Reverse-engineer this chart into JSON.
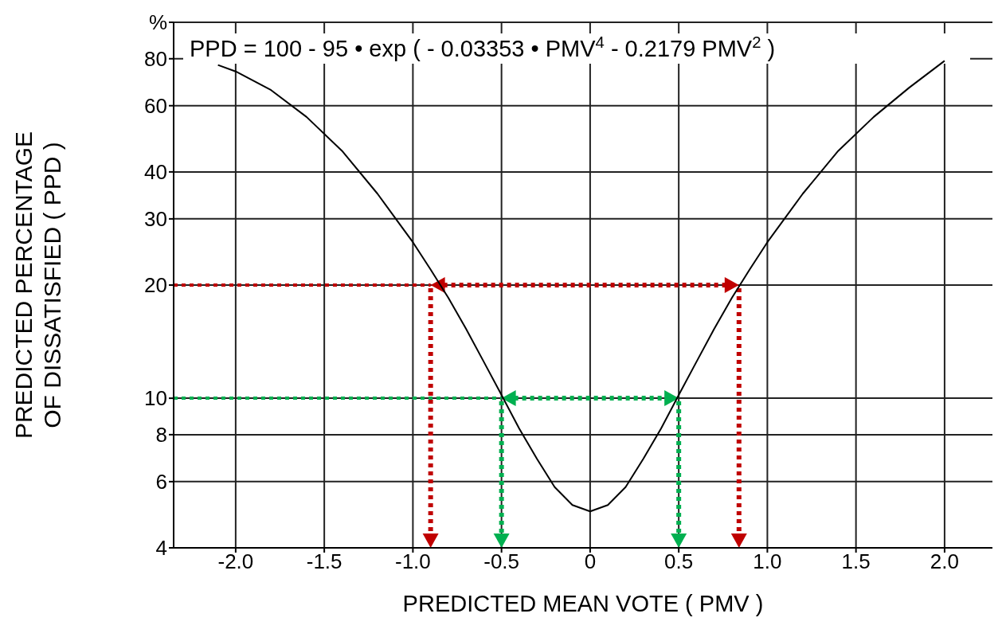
{
  "chart_data": {
    "type": "line",
    "xlabel": "PREDICTED  MEAN  VOTE  ( PMV )",
    "ylabel": "PREDICTED  PERCENTAGE\nOF  DISSATISFIED  ( PPD )",
    "annotations": [
      "PPD = 100 - 95 • exp ( - 0.03353 • PMV$^{4}$ - 0.2179 PMV$^{2}$ )"
    ],
    "log": "y",
    "grid": true,
    "marker": "none",
    "xlim": [
      -2.35,
      2.27
    ],
    "xticks": [
      {
        "value": -2,
        "label": "-2.0"
      },
      {
        "value": -1.5,
        "label": "-1.5"
      },
      {
        "value": -1,
        "label": "-1.0"
      },
      {
        "value": -0.5,
        "label": "-0.5"
      },
      0,
      0.5,
      {
        "value": 1,
        "label": "1.0"
      },
      1.5,
      {
        "value": 2,
        "label": "2.0"
      }
    ],
    "ylim": [
      4,
      100
    ],
    "yticks": [
      4,
      6,
      8,
      10,
      20,
      30,
      40,
      60,
      80,
      {
        "value": 100,
        "label": "%"
      }
    ],
    "series": [
      {
        "color": "#000000",
        "line_style": "solid",
        "x": [
          -2.1,
          -2.0,
          -1.8,
          -1.6,
          -1.4,
          -1.2,
          -1.0,
          -0.9,
          -0.8,
          -0.7,
          -0.6,
          -0.5,
          -0.4,
          -0.3,
          -0.2,
          -0.1,
          0,
          0.1,
          0.2,
          0.3,
          0.4,
          0.5,
          0.6,
          0.7,
          0.8,
          0.9,
          1.0,
          1.2,
          1.4,
          1.6,
          1.8,
          2.0
        ],
        "values": [
          77,
          74,
          66,
          56,
          45.5,
          35,
          26,
          22,
          18.5,
          15.3,
          12.5,
          10.2,
          8.3,
          6.9,
          5.8,
          5.2,
          5,
          5.2,
          5.8,
          6.9,
          8.3,
          10.2,
          12.5,
          15.3,
          18.5,
          22,
          26,
          35,
          45.5,
          56,
          67,
          79
        ]
      }
    ],
    "ref_lines": [
      {
        "axis": "y",
        "value": 20,
        "color": "#c00000",
        "line_style": "dotted"
      },
      {
        "axis": "y",
        "value": 10,
        "color": "#00b050",
        "line_style": "dotted"
      },
      {
        "axis": "x",
        "value": -0.9,
        "color": "#c00000",
        "line_style": "dotted"
      },
      {
        "axis": "x",
        "value": 0.84,
        "color": "#c00000",
        "line_style": "dotted"
      },
      {
        "axis": "x",
        "value": -0.5,
        "color": "#00b050",
        "line_style": "dotted"
      },
      {
        "axis": "x",
        "value": 0.5,
        "color": "#00b050",
        "line_style": "dotted"
      }
    ]
  }
}
